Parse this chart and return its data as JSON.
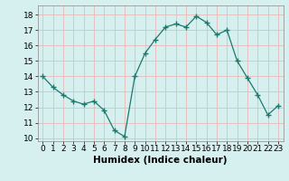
{
  "x": [
    0,
    1,
    2,
    3,
    4,
    5,
    6,
    7,
    8,
    9,
    10,
    11,
    12,
    13,
    14,
    15,
    16,
    17,
    18,
    19,
    20,
    21,
    22,
    23
  ],
  "y": [
    14.0,
    13.3,
    12.8,
    12.4,
    12.2,
    12.4,
    11.8,
    10.5,
    10.1,
    14.0,
    15.5,
    16.4,
    17.2,
    17.4,
    17.2,
    17.9,
    17.5,
    16.7,
    17.0,
    15.0,
    13.9,
    12.8,
    11.5,
    12.1
  ],
  "xlabel": "Humidex (Indice chaleur)",
  "ylim": [
    9.8,
    18.6
  ],
  "xlim": [
    -0.5,
    23.5
  ],
  "yticks": [
    10,
    11,
    12,
    13,
    14,
    15,
    16,
    17,
    18
  ],
  "xticks": [
    0,
    1,
    2,
    3,
    4,
    5,
    6,
    7,
    8,
    9,
    10,
    11,
    12,
    13,
    14,
    15,
    16,
    17,
    18,
    19,
    20,
    21,
    22,
    23
  ],
  "line_color": "#1a7a6e",
  "marker": "+",
  "bg_color": "#d6f0f0",
  "grid_color": "#e8b8b8",
  "xlabel_fontsize": 7.5,
  "tick_fontsize": 6.5
}
